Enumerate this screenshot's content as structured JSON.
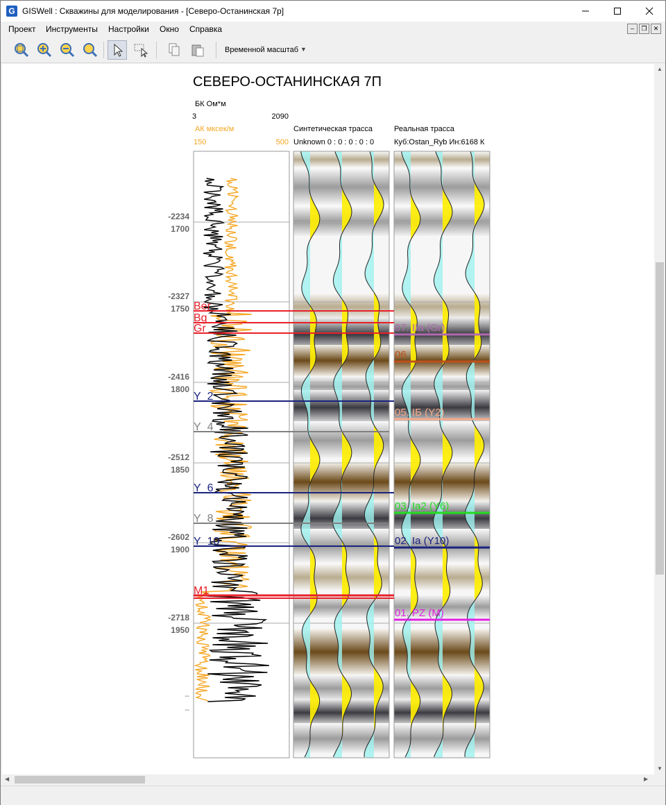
{
  "window": {
    "title": "GISWell : Скважины для моделирования - [Северо-Останинская 7р]",
    "icon_letter": "G"
  },
  "menu": [
    "Проект",
    "Инструменты",
    "Настройки",
    "Окно",
    "Справка"
  ],
  "toolbar": {
    "buttons": [
      "zoom-fit-icon",
      "zoom-in-icon",
      "zoom-out-icon",
      "zoom-reset-icon",
      "pointer-icon",
      "select-region-icon",
      "copy-icon",
      "paste-icon"
    ],
    "time_scale_label": "Временной масштаб"
  },
  "panel": {
    "title": "СЕВЕРО-ОСТАНИНСКАЯ 7П",
    "curve1": {
      "name": "БК Ом*м",
      "min": "3",
      "max": "2090",
      "color": "#000000"
    },
    "curve2": {
      "name": "АК мксек/м",
      "min": "150",
      "max": "500",
      "color": "#f5a623"
    },
    "synthetic": {
      "name": "Синтетическая трасса",
      "params": "Unknown 0 : 0 : 0 : 0 : 0"
    },
    "real": {
      "name": "Реальная трасса",
      "params": "Куб:Ostan_Ryb Ин:6168 К"
    },
    "depth_ticks": [
      {
        "abs": "-2234",
        "md": "1700"
      },
      {
        "abs": "-2327",
        "md": "1750"
      },
      {
        "abs": "-2416",
        "md": "1800"
      },
      {
        "abs": "-2512",
        "md": "1850"
      },
      {
        "abs": "-2602",
        "md": "1900"
      },
      {
        "abs": "-2718",
        "md": "1950"
      }
    ],
    "bottom_ticks": [
      "--",
      "--"
    ],
    "well_markers": [
      {
        "label": "Ber",
        "color": "#e8202a"
      },
      {
        "label": "Bg",
        "color": "#e8202a"
      },
      {
        "label": "Gr",
        "color": "#e8202a"
      },
      {
        "label": "Y_2",
        "color": "#1a237e"
      },
      {
        "label": "Y_4",
        "color": "#808080"
      },
      {
        "label": "Y_6",
        "color": "#1a237e"
      },
      {
        "label": "Y_8",
        "color": "#808080"
      },
      {
        "label": "Y_10",
        "color": "#1a237e"
      },
      {
        "label": "M1",
        "color": "#e8202a"
      }
    ],
    "horizons": [
      {
        "label": "07. IIa (Gr)",
        "color": "#b06ab0"
      },
      {
        "label": "06",
        "color": "#c0501a"
      },
      {
        "label": "05. IБ (Y2)",
        "color": "#f5a88a"
      },
      {
        "label": "03. Ia2 (Y6)",
        "color": "#22dd22"
      },
      {
        "label": "02. Ia (Y10)",
        "color": "#1a237e"
      },
      {
        "label": "01. PZ (M)",
        "color": "#e020e0"
      }
    ]
  }
}
